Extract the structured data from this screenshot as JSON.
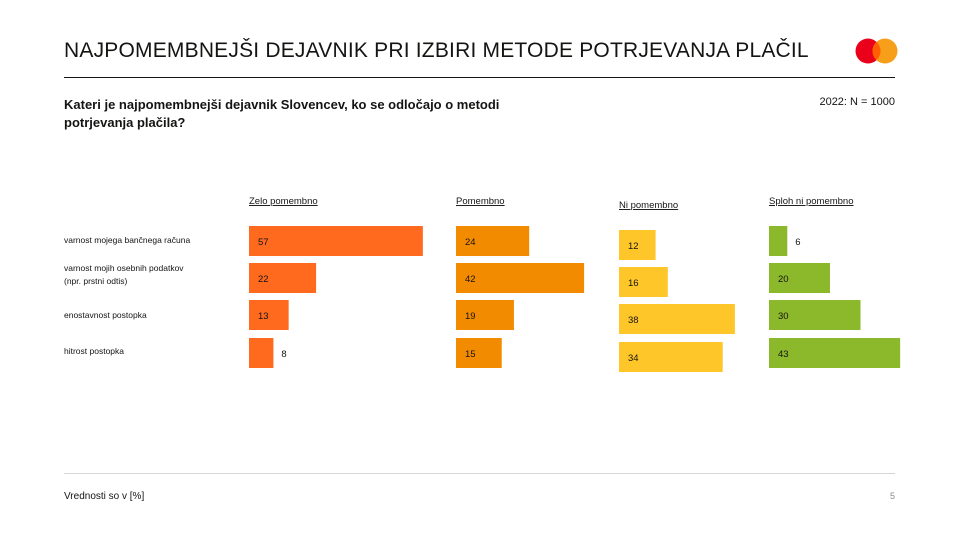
{
  "slide": {
    "title": "NAJPOMEMBNEJŠI DEJAVNIK PRI IZBIRI METODE POTRJEVANJA PLAČIL",
    "question": "Kateri je najpomembnejši dejavnik Slovencev, ko se odločajo o metodi potrjevanja plačila?",
    "base": "2022: N = 1000",
    "footnote": "Vrednosti so v [%]",
    "page_number": "5",
    "logo_icon": "mastercard-logo-icon"
  },
  "chart_data": {
    "type": "bar",
    "orientation": "horizontal",
    "layout": "small-multiples",
    "categories": [
      [
        "varnost mojega bančnega računa"
      ],
      [
        "varnost mojih osebnih podatkov",
        "(npr. prstni odtis)"
      ],
      [
        "enostavnost postopka"
      ],
      [
        "hitrost postopka"
      ]
    ],
    "series": [
      {
        "name": "Zelo pomembno",
        "color": "#ff6a1f",
        "values": [
          57,
          22,
          13,
          8
        ]
      },
      {
        "name": "Pomembno",
        "color": "#f38b00",
        "values": [
          24,
          42,
          19,
          15
        ]
      },
      {
        "name": "Ni pomembno",
        "color": "#ffc629",
        "values": [
          12,
          16,
          38,
          34
        ]
      },
      {
        "name": "Sploh ni pomembno",
        "color": "#8cb82b",
        "values": [
          6,
          20,
          30,
          43
        ]
      }
    ],
    "unit": "%",
    "data_labels": true,
    "axes_visible": false,
    "grid": false
  }
}
